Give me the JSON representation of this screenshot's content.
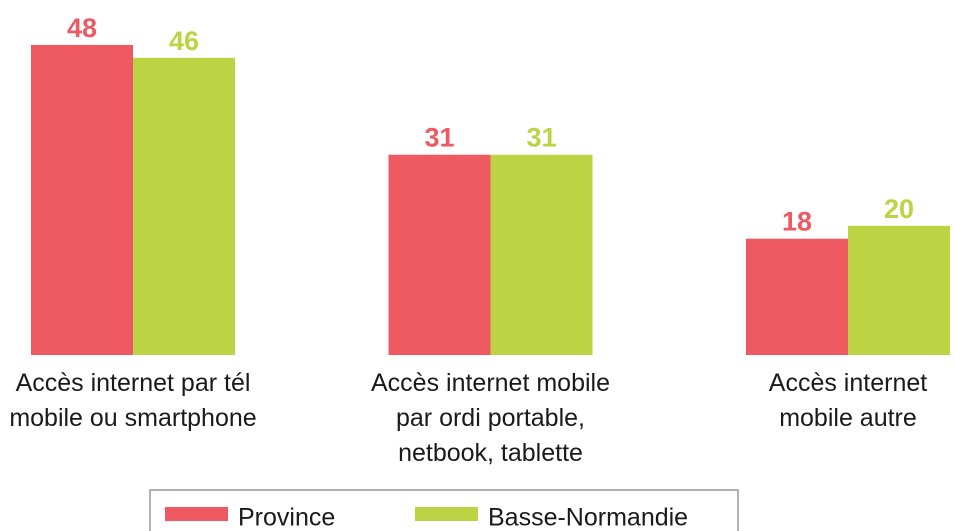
{
  "chart_data": {
    "type": "bar",
    "categories": [
      "Accès internet par tél\nmobile ou smartphone",
      "Accès internet mobile\npar ordi portable,\nnetbook, tablette",
      "Accès internet\nmobile autre"
    ],
    "series": [
      {
        "name": "Province",
        "color": "#ef5a62",
        "values": [
          48,
          31,
          18
        ]
      },
      {
        "name": "Basse-Normandie",
        "color": "#bcd444",
        "values": [
          46,
          31,
          20
        ]
      }
    ],
    "legend": "bottom"
  }
}
